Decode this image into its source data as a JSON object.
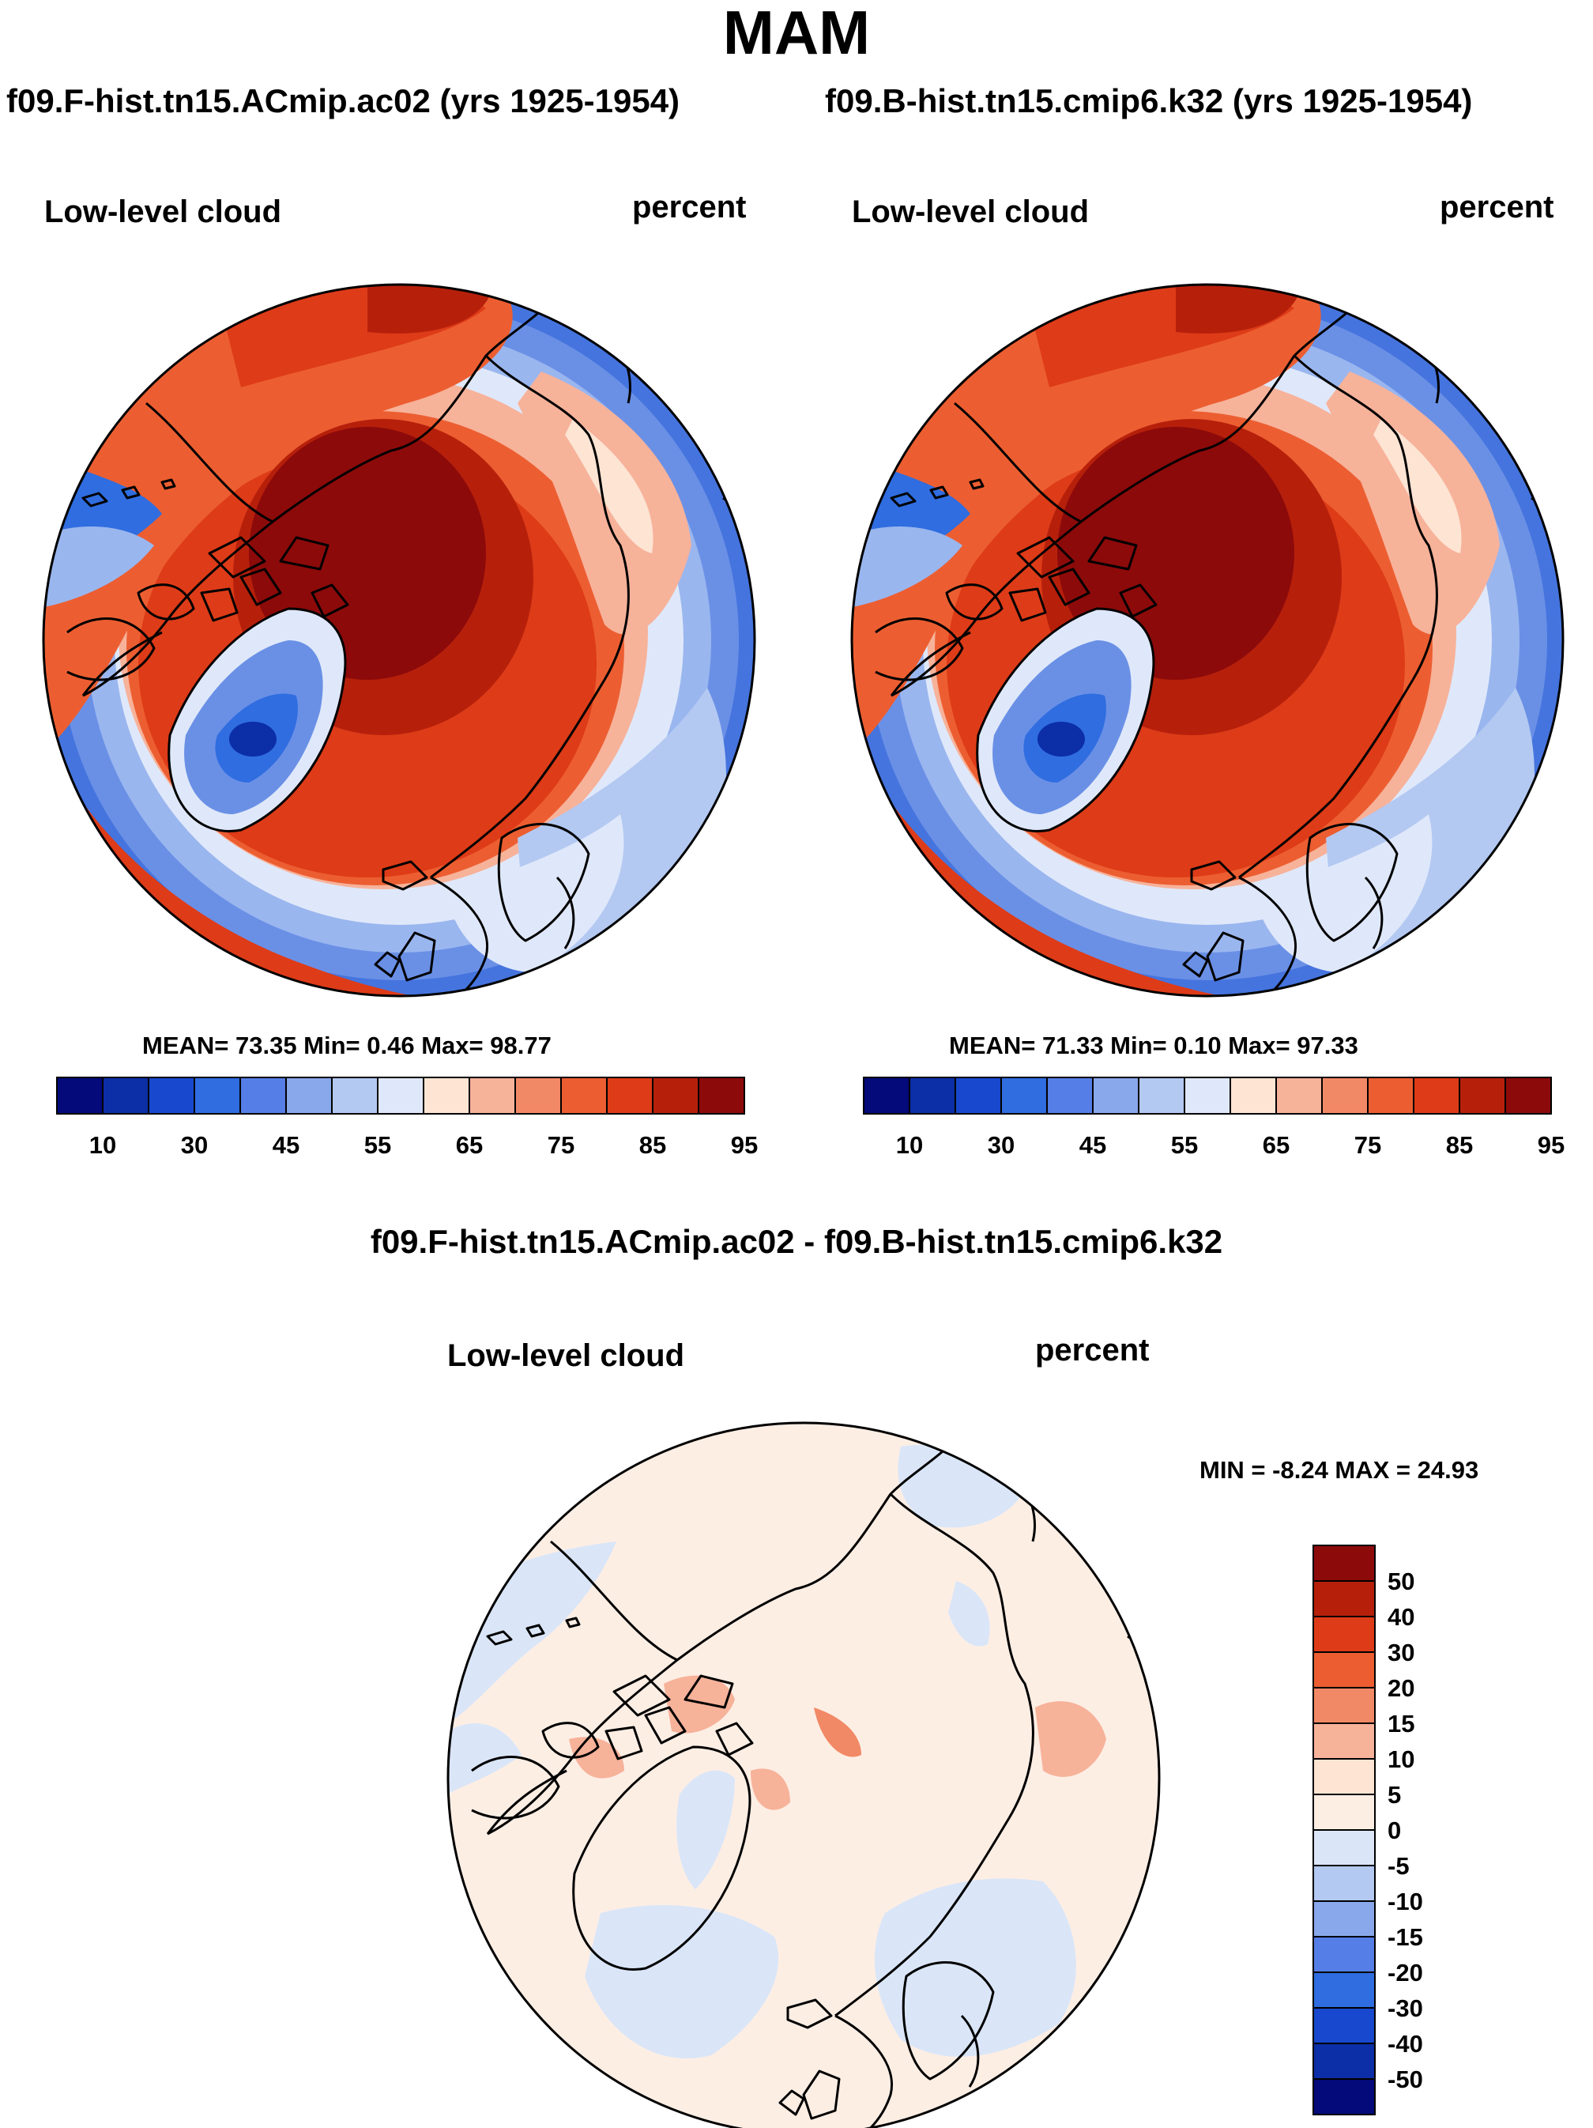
{
  "title": "MAM",
  "case_titles": {
    "left": "f09.F-hist.tn15.ACmip.ac02 (yrs 1925-1954)",
    "right": "f09.B-hist.tn15.cmip6.k32 (yrs 1925-1954)"
  },
  "panels": {
    "left": {
      "variable": "Low-level cloud",
      "units": "percent",
      "stats": "MEAN=  73.35  Min=   0.46  Max=  98.77"
    },
    "right": {
      "variable": "Low-level cloud",
      "units": "percent",
      "stats": "MEAN=  71.33  Min=   0.10  Max=  97.33"
    },
    "diff": {
      "title": "f09.F-hist.tn15.ACmip.ac02 - f09.B-hist.tn15.cmip6.k32",
      "variable": "Low-level cloud",
      "units": "percent",
      "stats": "MIN =  -8.24 MAX =  24.93"
    }
  },
  "colorbars": {
    "main": {
      "labels": [
        "10",
        "30",
        "45",
        "55",
        "65",
        "75",
        "85",
        "95"
      ],
      "colors": [
        "#040a79",
        "#0c2ea6",
        "#1848cd",
        "#2f6de0",
        "#557ee6",
        "#89a8eb",
        "#b3c9f2",
        "#dfe8fa",
        "#fde4d3",
        "#f7b29a",
        "#f28966",
        "#ec5e31",
        "#de3b18",
        "#b6200b",
        "#8d0a0a"
      ]
    },
    "diff": {
      "labels": [
        "50",
        "40",
        "30",
        "20",
        "15",
        "10",
        "5",
        "0",
        "-5",
        "-10",
        "-15",
        "-20",
        "-30",
        "-40",
        "-50"
      ],
      "colors": [
        "#8d0a0a",
        "#b6200b",
        "#de3b18",
        "#ec5e31",
        "#f28966",
        "#f7b29a",
        "#fde4d3",
        "#fdeee4",
        "#dae6f8",
        "#b3c9f2",
        "#89a8eb",
        "#557ee6",
        "#2f6de0",
        "#1848cd",
        "#0c2ea6",
        "#040a79"
      ]
    }
  }
}
